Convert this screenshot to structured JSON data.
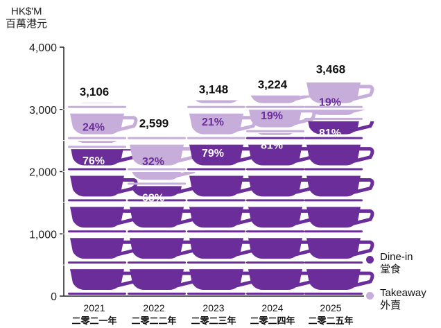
{
  "y_unit": {
    "line1": "HK$'M",
    "line2": "百萬港元"
  },
  "colors": {
    "dine_in": "#6B2D9A",
    "takeaway": "#C7ADD9",
    "axis": "#222222",
    "separator": "#ffffff"
  },
  "legend": [
    {
      "key": "dine_in",
      "line1": "Dine-in",
      "line2": "堂食"
    },
    {
      "key": "takeaway",
      "line1": "Takeaway",
      "line2": "外賣"
    }
  ],
  "chart_data": {
    "type": "bar",
    "stacked": true,
    "unit_icon": "cup-icon",
    "categories": [
      "2021",
      "2022",
      "2023",
      "2024",
      "2025"
    ],
    "category_sublabels": [
      "二零二一年",
      "二零二二年",
      "二零二三年",
      "二零二四年",
      "二零二五年"
    ],
    "totals": [
      3106,
      2599,
      3148,
      3224,
      3468
    ],
    "total_labels": [
      "3,106",
      "2,599",
      "3,148",
      "3,224",
      "3,468"
    ],
    "series": [
      {
        "name": "Dine-in 堂食",
        "key": "dine_in",
        "share_pct": [
          76,
          68,
          79,
          81,
          81
        ],
        "share_labels": [
          "76%",
          "68%",
          "79%",
          "81%",
          "81%"
        ]
      },
      {
        "name": "Takeaway 外賣",
        "key": "takeaway",
        "share_pct": [
          24,
          32,
          21,
          19,
          19
        ],
        "share_labels": [
          "24%",
          "32%",
          "21%",
          "19%",
          "19%"
        ]
      }
    ],
    "ylim": [
      0,
      4000
    ],
    "yticks": [
      0,
      1000,
      2000,
      3000,
      4000
    ],
    "ytick_labels": [
      "0",
      "1,000",
      "2,000",
      "3,000",
      "4,000"
    ],
    "grid": false,
    "legend_position": "bottom-right"
  }
}
